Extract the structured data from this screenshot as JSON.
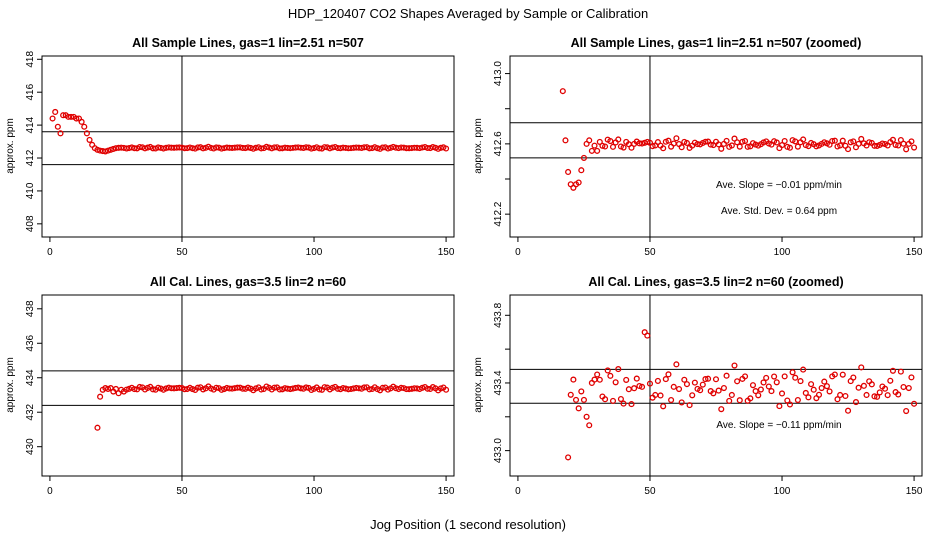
{
  "figure_title": "HDP_120407  CO2 Shapes Averaged by Sample or Calibration",
  "x_axis_label": "Jog Position (1 second resolution)",
  "colors": {
    "points": "#e00000",
    "lines": "#000000",
    "background": "#ffffff"
  },
  "chart_data": [
    {
      "type": "scatter",
      "title": "All Sample Lines, gas=1 lin=2.51 n=507",
      "ylabel": "approx. ppm",
      "xlim": [
        -3,
        153
      ],
      "ylim": [
        407.2,
        418.2
      ],
      "xticks": [
        0,
        50,
        100,
        150
      ],
      "yticks": [
        408,
        410,
        412,
        414,
        416,
        418
      ],
      "vline": 50,
      "hlines": [
        413.6,
        411.6
      ],
      "annotations": [],
      "series_gen": {
        "x_start": 1,
        "x_end": 150,
        "points": [
          [
            1,
            414.4
          ],
          [
            2,
            414.8
          ],
          [
            3,
            413.9
          ],
          [
            4,
            413.5
          ],
          [
            5,
            414.6
          ],
          [
            6,
            414.6
          ],
          [
            7,
            414.5
          ],
          [
            8,
            414.5
          ],
          [
            9,
            414.5
          ],
          [
            10,
            414.4
          ],
          [
            11,
            414.4
          ],
          [
            12,
            414.2
          ],
          [
            13,
            413.9
          ],
          [
            14,
            413.5
          ],
          [
            15,
            413.1
          ],
          [
            16,
            412.8
          ],
          [
            17,
            412.6
          ],
          [
            18,
            412.5
          ],
          [
            19,
            412.45
          ],
          [
            20,
            412.42
          ],
          [
            21,
            412.4
          ],
          [
            22,
            412.45
          ],
          [
            23,
            412.5
          ],
          [
            24,
            412.55
          ],
          [
            25,
            412.6
          ],
          [
            26,
            412.62
          ]
        ],
        "base": 412.62,
        "amp": 0.05
      }
    },
    {
      "type": "scatter",
      "title": "All Sample Lines, gas=1 lin=2.51 n=507 (zoomed)",
      "ylabel": "approx. ppm",
      "xlim": [
        -3,
        153
      ],
      "ylim": [
        412.07,
        413.1
      ],
      "xticks": [
        0,
        50,
        100,
        150
      ],
      "yticks": [
        412.2,
        412.4,
        412.6,
        412.8,
        413.0
      ],
      "ytick_labels": [
        "412.2",
        "",
        "412.6",
        "",
        "413.0"
      ],
      "vline": 50,
      "hlines": [
        412.72,
        412.52
      ],
      "annotations": [
        "Ave. Slope =  −0.01  ppm/min",
        "Ave. Std. Dev. =  0.64  ppm"
      ],
      "series_gen": {
        "x_start": 17,
        "x_end": 150,
        "points": [
          [
            17,
            412.9
          ],
          [
            18,
            412.62
          ],
          [
            19,
            412.44
          ],
          [
            20,
            412.37
          ],
          [
            21,
            412.35
          ],
          [
            22,
            412.37
          ],
          [
            23,
            412.38
          ],
          [
            24,
            412.45
          ],
          [
            25,
            412.52
          ],
          [
            26,
            412.6
          ],
          [
            27,
            412.62
          ],
          [
            28,
            412.56
          ],
          [
            29,
            412.59
          ],
          [
            30,
            412.56
          ]
        ],
        "base": 412.6,
        "amp": 0.025
      }
    },
    {
      "type": "scatter",
      "title": "All Cal. Lines, gas=3.5 lin=2 n=60",
      "ylabel": "approx. ppm",
      "xlim": [
        -3,
        153
      ],
      "ylim": [
        428.3,
        438.8
      ],
      "xticks": [
        0,
        50,
        100,
        150
      ],
      "yticks": [
        430,
        432,
        434,
        436,
        438
      ],
      "vline": 50,
      "hlines": [
        434.4,
        432.4
      ],
      "annotations": [],
      "series_gen": {
        "x_start": 18,
        "x_end": 150,
        "points": [
          [
            18,
            431.1
          ],
          [
            19,
            432.9
          ],
          [
            20,
            433.3
          ],
          [
            21,
            433.4
          ],
          [
            22,
            433.35
          ],
          [
            23,
            433.4
          ],
          [
            24,
            433.2
          ],
          [
            25,
            433.35
          ],
          [
            26,
            433.1
          ],
          [
            27,
            433.3
          ],
          [
            28,
            433.2
          ]
        ],
        "base": 433.38,
        "amp": 0.09
      }
    },
    {
      "type": "scatter",
      "title": "All Cal. Lines, gas=3.5 lin=2 n=60 (zoomed)",
      "ylabel": "approx. ppm",
      "xlim": [
        -3,
        153
      ],
      "ylim": [
        432.85,
        433.92
      ],
      "xticks": [
        0,
        50,
        100,
        150
      ],
      "yticks": [
        433.0,
        433.2,
        433.4,
        433.6,
        433.8
      ],
      "ytick_labels": [
        "433.0",
        "",
        "433.4",
        "",
        "433.8"
      ],
      "vline": 50,
      "hlines": [
        433.48,
        433.28
      ],
      "annotations": [
        "Ave. Slope =  −0.11  ppm/min"
      ],
      "series_gen": {
        "x_start": 19,
        "x_end": 150,
        "points": [
          [
            19,
            432.96
          ],
          [
            20,
            433.33
          ],
          [
            21,
            433.42
          ],
          [
            22,
            433.3
          ],
          [
            23,
            433.25
          ],
          [
            24,
            433.35
          ],
          [
            25,
            433.3
          ],
          [
            26,
            433.2
          ],
          [
            27,
            433.15
          ],
          [
            28,
            433.4
          ],
          [
            29,
            433.42
          ],
          [
            30,
            433.45
          ],
          [
            48,
            433.7
          ],
          [
            49,
            433.68
          ]
        ],
        "base": 433.37,
        "amp": 0.11
      }
    }
  ]
}
